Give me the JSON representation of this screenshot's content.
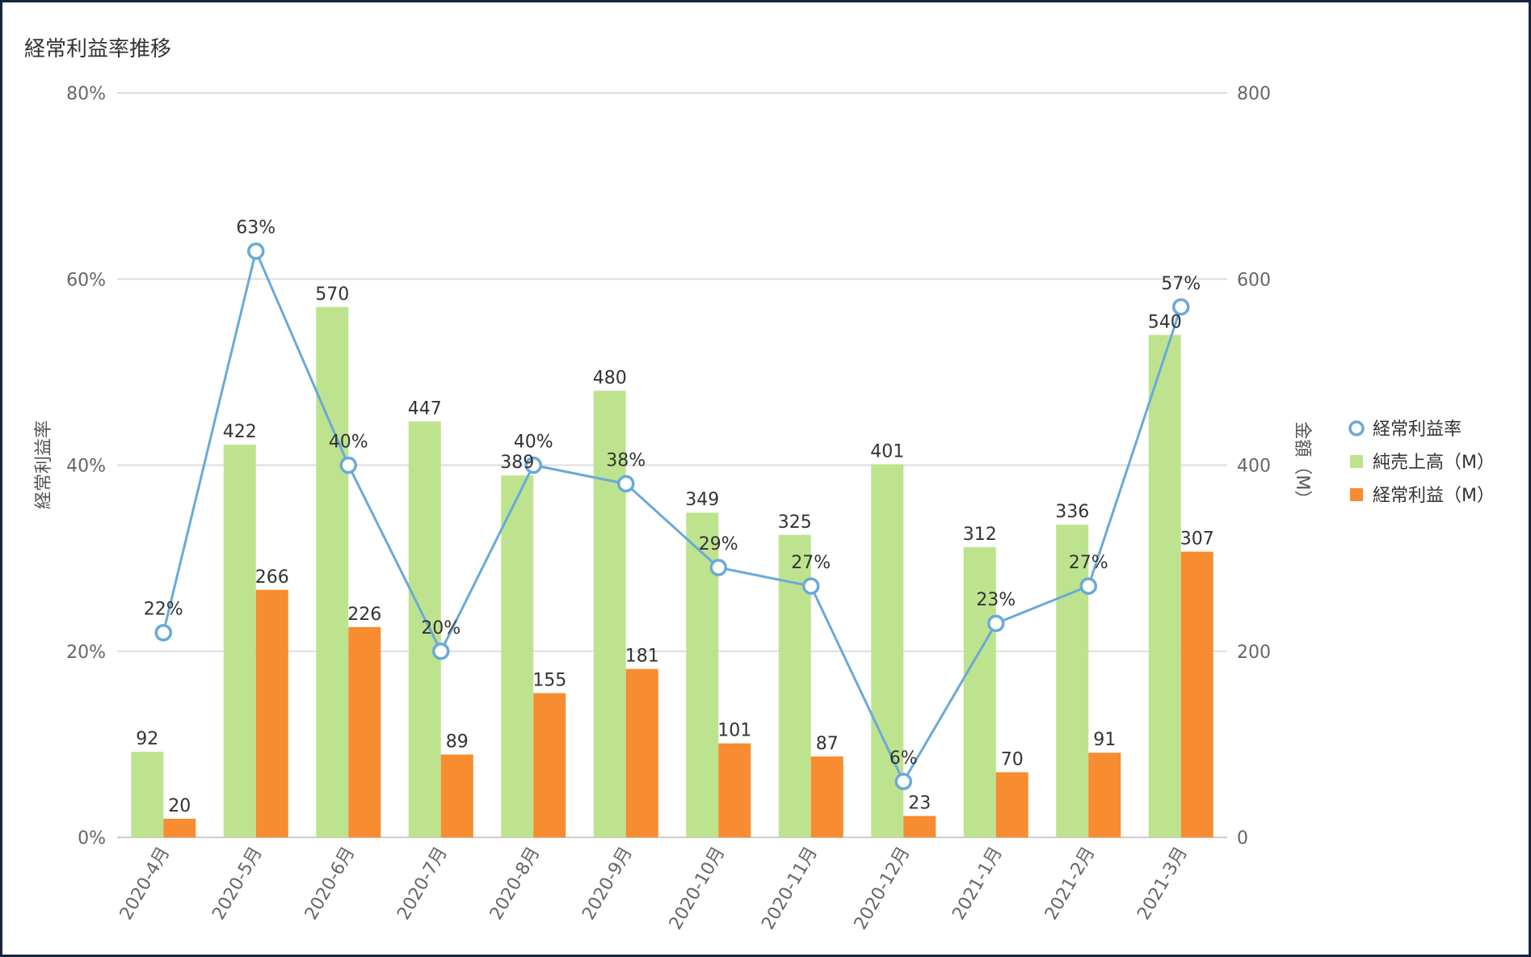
{
  "chart_data": {
    "type": "bar",
    "title": "経常利益率推移",
    "categories": [
      "2020-4月",
      "2020-5月",
      "2020-6月",
      "2020-7月",
      "2020-8月",
      "2020-9月",
      "2020-10月",
      "2020-11月",
      "2020-12月",
      "2021-1月",
      "2021-2月",
      "2021-3月"
    ],
    "series": [
      {
        "name": "純売上高（M）",
        "kind": "bar",
        "axis": "right",
        "color": "#bde38f",
        "values": [
          92,
          422,
          570,
          447,
          389,
          480,
          349,
          325,
          401,
          312,
          336,
          540
        ]
      },
      {
        "name": "経常利益（M）",
        "kind": "bar",
        "axis": "right",
        "color": "#f78c30",
        "values": [
          20,
          266,
          226,
          89,
          155,
          181,
          101,
          87,
          23,
          70,
          91,
          307
        ]
      },
      {
        "name": "経常利益率",
        "kind": "line",
        "axis": "left",
        "color": "#6aa9d8",
        "values": [
          22,
          63,
          40,
          20,
          40,
          38,
          29,
          27,
          6,
          23,
          27,
          57
        ]
      }
    ],
    "data_labels": {
      "sales": [
        "92",
        "422",
        "570",
        "447",
        "389",
        "480",
        "349",
        "325",
        "401",
        "312",
        "336",
        "540"
      ],
      "profit": [
        "20",
        "266",
        "226",
        "89",
        "155",
        "181",
        "101",
        "87",
        "23",
        "70",
        "91",
        "307"
      ],
      "rate": [
        "22%",
        "63%",
        "40%",
        "20%",
        "40%",
        "38%",
        "29%",
        "27%",
        "6%",
        "23%",
        "27%",
        "57%"
      ]
    },
    "y_left": {
      "label": "経常利益率",
      "range": [
        0,
        80
      ],
      "ticks": [
        "0%",
        "20%",
        "40%",
        "60%",
        "80%"
      ]
    },
    "y_right": {
      "label": "金額（M）",
      "range": [
        0,
        800
      ],
      "ticks": [
        "0",
        "200",
        "400",
        "600",
        "800"
      ]
    },
    "legend": {
      "position": "right",
      "items": [
        {
          "label": "経常利益率",
          "marker": "circle",
          "color": "#6aa9d8"
        },
        {
          "label": "純売上高（M）",
          "marker": "square",
          "color": "#bde38f"
        },
        {
          "label": "経常利益（M）",
          "marker": "square",
          "color": "#f78c30"
        }
      ]
    },
    "grid": true
  }
}
